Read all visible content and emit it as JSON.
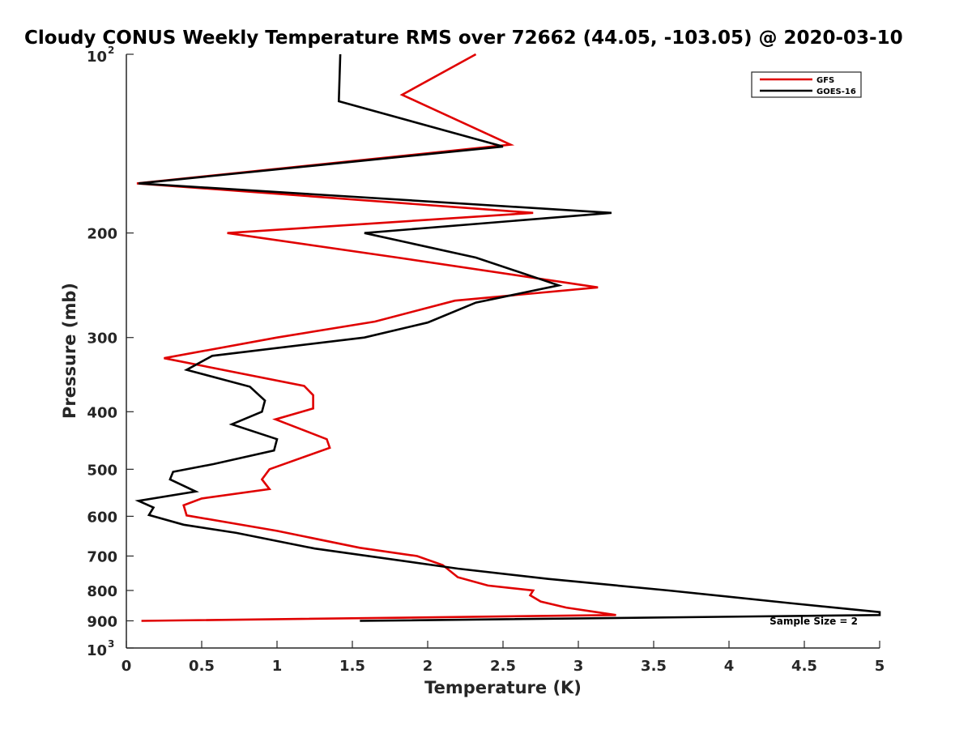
{
  "chart_data": {
    "type": "line",
    "title": "Cloudy CONUS Weekly Temperature RMS over 72662 (44.05, -103.05) @ 2020-03-10",
    "xlabel": "Temperature (K)",
    "ylabel": "Pressure (mb)",
    "xlim": [
      0,
      5
    ],
    "ylim": [
      100,
      1000
    ],
    "yscale": "log",
    "y_reversed": true,
    "grid": false,
    "legend_position": "top-right",
    "x_ticks": [
      "0",
      "0.5",
      "1",
      "1.5",
      "2",
      "2.5",
      "3",
      "3.5",
      "4",
      "4.5",
      "5"
    ],
    "x_tick_values": [
      0,
      0.5,
      1,
      1.5,
      2,
      2.5,
      3,
      3.5,
      4,
      4.5,
      5
    ],
    "y_ticks": [
      {
        "value": 100,
        "label": "10",
        "sup": "2"
      },
      {
        "value": 200,
        "label": "200",
        "sup": ""
      },
      {
        "value": 300,
        "label": "300",
        "sup": ""
      },
      {
        "value": 400,
        "label": "400",
        "sup": ""
      },
      {
        "value": 500,
        "label": "500",
        "sup": ""
      },
      {
        "value": 600,
        "label": "600",
        "sup": ""
      },
      {
        "value": 700,
        "label": "700",
        "sup": ""
      },
      {
        "value": 800,
        "label": "800",
        "sup": ""
      },
      {
        "value": 900,
        "label": "900",
        "sup": ""
      },
      {
        "value": 1000,
        "label": "10",
        "sup": "3"
      }
    ],
    "annotation": "Sample Size = 2",
    "series": [
      {
        "name": "GFS",
        "color": "#e00000",
        "points": [
          {
            "x": 2.32,
            "p": 100
          },
          {
            "x": 1.83,
            "p": 117
          },
          {
            "x": 2.55,
            "p": 142
          },
          {
            "x": 0.07,
            "p": 165
          },
          {
            "x": 2.7,
            "p": 185
          },
          {
            "x": 0.67,
            "p": 200
          },
          {
            "x": 1.8,
            "p": 220
          },
          {
            "x": 3.13,
            "p": 247
          },
          {
            "x": 2.18,
            "p": 260
          },
          {
            "x": 1.65,
            "p": 282
          },
          {
            "x": 1.0,
            "p": 300
          },
          {
            "x": 0.25,
            "p": 325
          },
          {
            "x": 1.18,
            "p": 362
          },
          {
            "x": 1.24,
            "p": 375
          },
          {
            "x": 1.24,
            "p": 395
          },
          {
            "x": 0.99,
            "p": 412
          },
          {
            "x": 1.33,
            "p": 445
          },
          {
            "x": 1.35,
            "p": 460
          },
          {
            "x": 0.95,
            "p": 500
          },
          {
            "x": 0.9,
            "p": 520
          },
          {
            "x": 0.95,
            "p": 540
          },
          {
            "x": 0.5,
            "p": 560
          },
          {
            "x": 0.38,
            "p": 575
          },
          {
            "x": 0.4,
            "p": 598
          },
          {
            "x": 1.0,
            "p": 635
          },
          {
            "x": 1.55,
            "p": 678
          },
          {
            "x": 1.93,
            "p": 700
          },
          {
            "x": 2.1,
            "p": 725
          },
          {
            "x": 2.2,
            "p": 760
          },
          {
            "x": 2.4,
            "p": 785
          },
          {
            "x": 2.7,
            "p": 800
          },
          {
            "x": 2.68,
            "p": 815
          },
          {
            "x": 2.75,
            "p": 835
          },
          {
            "x": 2.92,
            "p": 855
          },
          {
            "x": 3.25,
            "p": 880
          },
          {
            "x": 0.1,
            "p": 900
          }
        ]
      },
      {
        "name": "GOES-16",
        "color": "#000000",
        "points": [
          {
            "x": 1.42,
            "p": 100
          },
          {
            "x": 1.41,
            "p": 120
          },
          {
            "x": 2.5,
            "p": 143
          },
          {
            "x": 0.08,
            "p": 165
          },
          {
            "x": 3.22,
            "p": 185
          },
          {
            "x": 1.58,
            "p": 200
          },
          {
            "x": 2.32,
            "p": 220
          },
          {
            "x": 2.87,
            "p": 245
          },
          {
            "x": 2.32,
            "p": 262
          },
          {
            "x": 2.0,
            "p": 283
          },
          {
            "x": 1.58,
            "p": 300
          },
          {
            "x": 0.57,
            "p": 322
          },
          {
            "x": 0.4,
            "p": 340
          },
          {
            "x": 0.82,
            "p": 363
          },
          {
            "x": 0.92,
            "p": 383
          },
          {
            "x": 0.9,
            "p": 400
          },
          {
            "x": 0.7,
            "p": 420
          },
          {
            "x": 1.0,
            "p": 445
          },
          {
            "x": 0.98,
            "p": 465
          },
          {
            "x": 0.58,
            "p": 490
          },
          {
            "x": 0.31,
            "p": 505
          },
          {
            "x": 0.29,
            "p": 520
          },
          {
            "x": 0.46,
            "p": 545
          },
          {
            "x": 0.08,
            "p": 565
          },
          {
            "x": 0.18,
            "p": 580
          },
          {
            "x": 0.15,
            "p": 597
          },
          {
            "x": 0.38,
            "p": 620
          },
          {
            "x": 0.73,
            "p": 640
          },
          {
            "x": 1.25,
            "p": 680
          },
          {
            "x": 2.2,
            "p": 735
          },
          {
            "x": 2.8,
            "p": 765
          },
          {
            "x": 3.6,
            "p": 800
          },
          {
            "x": 4.4,
            "p": 840
          },
          {
            "x": 5.0,
            "p": 870
          },
          {
            "x": 5.0,
            "p": 880
          },
          {
            "x": 1.55,
            "p": 900
          }
        ]
      }
    ]
  }
}
